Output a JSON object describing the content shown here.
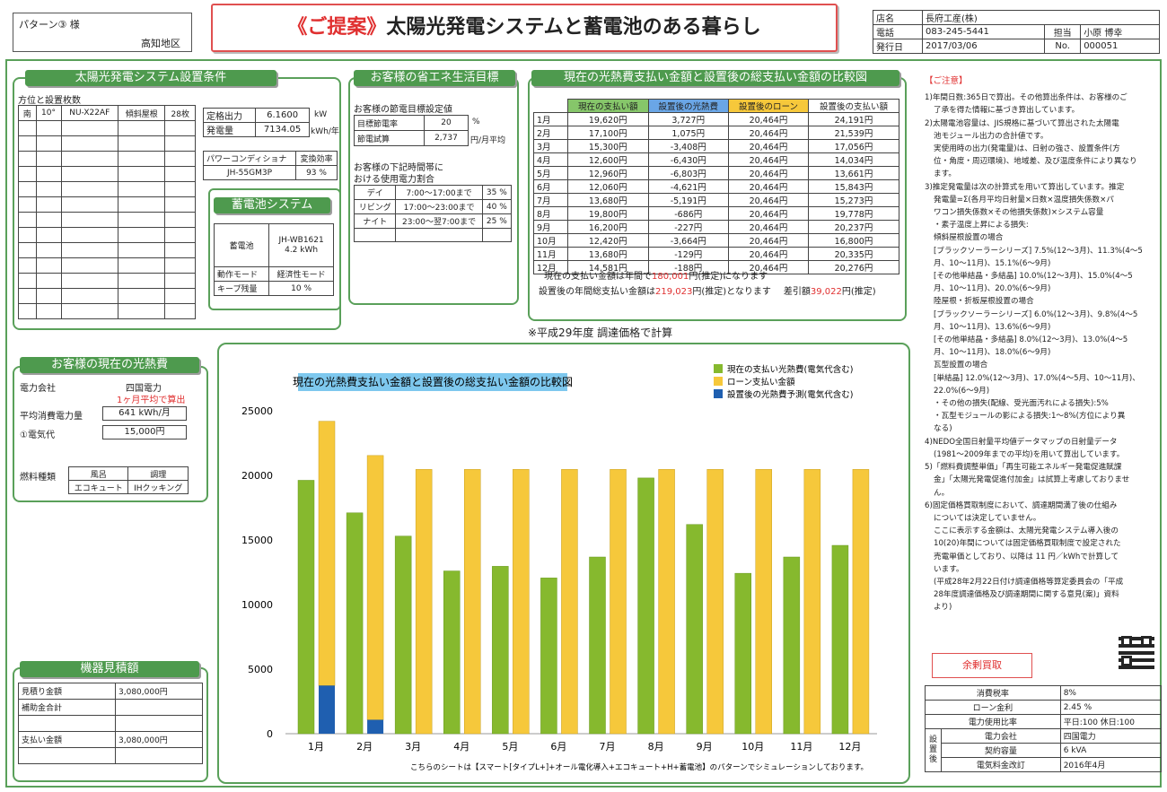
{
  "header": {
    "pattern": "パターン③ 様",
    "region": "高知地区",
    "title_prefix": "《ご提案》",
    "title_main": "太陽光発電システムと蓄電池のある暮らし",
    "store_label": "店名",
    "store": "長府工産(株)",
    "tel_label": "電話",
    "tel": "083-245-5441",
    "staff_label": "担当",
    "staff": "小原 博幸",
    "date_label": "発行日",
    "date": "2017/03/06",
    "no_label": "No.",
    "no": "000051"
  },
  "cond": {
    "title": "太陽光発電システム設置条件",
    "orient_label": "方位と設置枚数",
    "rows": [
      [
        "南",
        "10°",
        "NU-X22AF",
        "傾斜屋根",
        "28枚"
      ]
    ],
    "output_label": "定格出力",
    "output": "6.1600",
    "output_unit": "kW",
    "gen_label": "発電量",
    "gen": "7134.05",
    "gen_unit": "kWh/年",
    "pc_label": "パワーコンディショナ",
    "eff_label": "変換効率",
    "pc": "JH-55GM3P",
    "eff": "93 %"
  },
  "battery": {
    "title": "蓄電池システム",
    "label": "蓄電池",
    "model": "JH-WB1621",
    "cap": "4.2 kWh",
    "mode_label": "動作モード",
    "mode": "経済性モード",
    "keep_label": "キープ残量",
    "keep": "10 %"
  },
  "eco": {
    "title": "お客様の省エネ生活目標",
    "target_title": "お客様の節電目標設定値",
    "rate_label": "目標節電率",
    "rate": "20",
    "rate_unit": "%",
    "calc_label": "節電試算",
    "calc": "2,737",
    "calc_unit": "円/月平均",
    "time_title1": "お客様の下記時間帯に",
    "time_title2": "おける使用電力割合",
    "times": [
      {
        "name": "デイ",
        "range": "7:00～17:00まで",
        "pct": "35 %"
      },
      {
        "name": "リビング",
        "range": "17:00～23:00まで",
        "pct": "40 %"
      },
      {
        "name": "ナイト",
        "range": "23:00～翌7:00まで",
        "pct": "25 %"
      }
    ]
  },
  "compare": {
    "title": "現在の光熱費支払い金額と設置後の総支払い金額の比較図",
    "headers": [
      "現在の支払い額",
      "設置後の光熱費",
      "設置後のローン",
      "設置後の支払い額"
    ],
    "rows": [
      [
        "1月",
        "19,620円",
        "3,727円",
        "20,464円",
        "24,191円"
      ],
      [
        "2月",
        "17,100円",
        "1,075円",
        "20,464円",
        "21,539円"
      ],
      [
        "3月",
        "15,300円",
        "-3,408円",
        "20,464円",
        "17,056円"
      ],
      [
        "4月",
        "12,600円",
        "-6,430円",
        "20,464円",
        "14,034円"
      ],
      [
        "5月",
        "12,960円",
        "-6,803円",
        "20,464円",
        "13,661円"
      ],
      [
        "6月",
        "12,060円",
        "-4,621円",
        "20,464円",
        "15,843円"
      ],
      [
        "7月",
        "13,680円",
        "-5,191円",
        "20,464円",
        "15,273円"
      ],
      [
        "8月",
        "19,800円",
        "-686円",
        "20,464円",
        "19,778円"
      ],
      [
        "9月",
        "16,200円",
        "-227円",
        "20,464円",
        "20,237円"
      ],
      [
        "10月",
        "12,420円",
        "-3,664円",
        "20,464円",
        "16,800円"
      ],
      [
        "11月",
        "13,680円",
        "-129円",
        "20,464円",
        "20,335円"
      ],
      [
        "12月",
        "14,581円",
        "-188円",
        "20,464円",
        "20,276円"
      ]
    ],
    "sum1_pre": "現在の支払い金額は年間で",
    "sum1_val": "180,001",
    "sum1_post": "円(推定)になります",
    "sum2_pre": "設置後の年間総支払い金額は",
    "sum2_val": "219,023",
    "sum2_post": "円(推定)となります",
    "diff_pre": "差引額",
    "diff_val": "39,022",
    "diff_post": "円(推定)"
  },
  "fy_note": "※平成29年度 調達価格で計算",
  "current": {
    "title": "お客様の現在の光熱費",
    "company_label": "電力会社",
    "company": "四国電力",
    "avg_note": "1ヶ月平均で算出",
    "usage_label": "平均消費電力量",
    "usage": "641 kWh/月",
    "fee_label": "①電気代",
    "fee": "15,000円",
    "fuel_label": "燃料種類",
    "hot_label": "風呂",
    "cook_label": "調理",
    "hot": "エコキュート",
    "cook": "IHクッキング"
  },
  "estimate": {
    "title": "機器見積額",
    "rows": [
      {
        "label": "見積り金額",
        "value": "3,080,000円"
      },
      {
        "label": "補助金合計",
        "value": ""
      },
      {
        "label": "",
        "value": ""
      },
      {
        "label": "支払い金額",
        "value": "3,080,000円"
      },
      {
        "label": "",
        "value": ""
      }
    ]
  },
  "chart_data": {
    "type": "bar",
    "title": "現在の光熱費支払い金額と設置後の総支払い金額の比較図",
    "categories": [
      "1月",
      "2月",
      "3月",
      "4月",
      "5月",
      "6月",
      "7月",
      "8月",
      "9月",
      "10月",
      "11月",
      "12月"
    ],
    "series": [
      {
        "name": "現在の支払い光熱費(電気代含む)",
        "values": [
          19620,
          17100,
          15300,
          12600,
          12960,
          12060,
          13680,
          19800,
          16200,
          12420,
          13680,
          14581
        ],
        "color": "#86b92e"
      },
      {
        "name": "ローン支払い金額",
        "values": [
          20464,
          20464,
          20464,
          20464,
          20464,
          20464,
          20464,
          20464,
          20464,
          20464,
          20464,
          20464
        ],
        "color": "#f6c83b"
      },
      {
        "name": "設置後の光熱費予測(電気代含む)",
        "values": [
          3727,
          1075,
          0,
          0,
          0,
          0,
          0,
          0,
          0,
          0,
          0,
          0
        ],
        "color": "#1f5fb0"
      }
    ],
    "ylim": [
      0,
      25000
    ],
    "yticks": [
      "0",
      "5000",
      "10000",
      "15000",
      "20000",
      "25000"
    ],
    "footnote": "こちらのシートは【スマート[タイプL+]+オール電化導入+エコキュート+H+蓄電池】のパターンでシミュレーションしております。"
  },
  "notes": {
    "title": "【ご注意】",
    "lines": [
      "1)年間日数:365日で算出。その他算出条件は、お客様のご",
      "了承を得た情報に基づき算出しています。",
      "2)太陽電池容量は、JIS規格に基づいて算出された太陽電",
      "池モジュール出力の合計値です。",
      "実使用時の出力(発電量)は、日射の強さ、設置条件(方",
      "位・角度・周辺環境)、地域差、及び温度条件により異なり",
      "ます。",
      "3)推定発電量は次の計算式を用いて算出しています。推定",
      "発電量=Σ(各月平均日射量×日数×温度損失係数×パ",
      "ワコン損失係数×その他損失係数)×システム容量",
      "・素子温度上昇による損失:",
      "傾斜屋根設置の場合",
      "[ブラックソーラーシリーズ] 7.5%(12～3月)、11.3%(4～5",
      "月、10～11月)、15.1%(6～9月)",
      "[その他単結晶・多結晶] 10.0%(12～3月)、15.0%(4～5",
      "月、10～11月)、20.0%(6～9月)",
      "陸屋根・折板屋根設置の場合",
      "[ブラックソーラーシリーズ] 6.0%(12～3月)、9.8%(4～5",
      "月、10～11月)、13.6%(6～9月)",
      "[その他単結晶・多結晶] 8.0%(12～3月)、13.0%(4～5",
      "月、10～11月)、18.0%(6～9月)",
      "瓦型設置の場合",
      "[単結晶] 12.0%(12～3月)、17.0%(4～5月、10～11月)、",
      "22.0%(6～9月)",
      "・その他の損失(配線、受光面汚れによる損失):5%",
      "・瓦型モジュールの影による損失:1～8%(方位により異",
      "なる)",
      "4)NEDO全国日射量平均値データマップの日射量データ",
      "(1981～2009年までの平均)を用いて算出しています。",
      "5)「燃料費調整単価」「再生可能エネルギー発電促進賦課",
      "金」「太陽光発電促進付加金」は試算上考慮しておりませ",
      "ん。",
      "6)固定価格買取制度において、調達期間満了後の仕組み",
      "については決定していません。",
      "ここに表示する金額は、太陽光発電システム導入後の",
      "10(20)年間については固定価格買取制度で設定された",
      "売電単価としており、以降は  11  円／kWhで計算して",
      "います。",
      "(平成28年2月22日付け調達価格等算定委員会の「平成",
      "28年度調達価格及び調達期間に関する意見(案)」資料",
      "より)"
    ]
  },
  "surplus": "余剰買取",
  "bottom": {
    "rows": [
      {
        "label": "消費税率",
        "value": "8%"
      },
      {
        "label": "ローン金利",
        "value": "2.45 %"
      },
      {
        "label": "電力使用比率",
        "value": "平日:100  休日:100"
      }
    ],
    "side": "設置後",
    "sub": [
      {
        "label": "電力会社",
        "value": "四国電力"
      },
      {
        "label": "契約容量",
        "value": "6 kVA"
      },
      {
        "label": "電気料金改訂",
        "value": "2016年4月"
      }
    ]
  }
}
